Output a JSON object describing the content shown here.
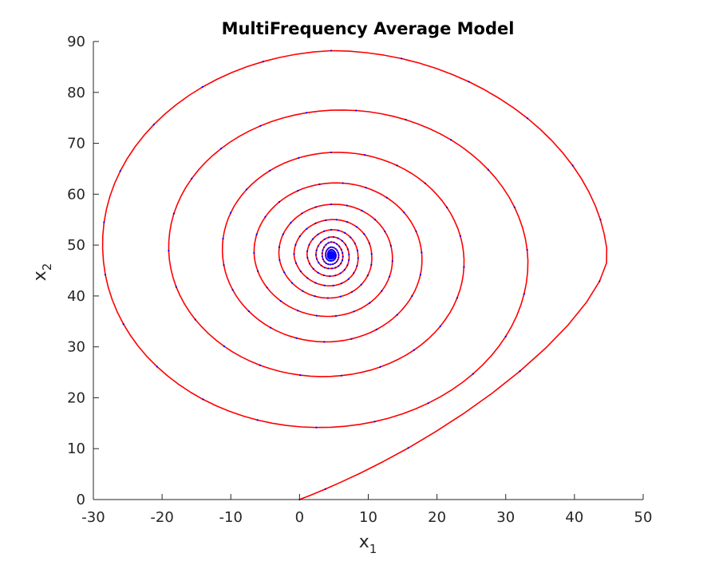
{
  "chart_data": {
    "type": "line",
    "title": "MultiFrequency Average Model",
    "xlabel": "x",
    "xlabel_subscript": "1",
    "ylabel": "x",
    "ylabel_subscript": "2",
    "xlim": [
      -30,
      50
    ],
    "ylim": [
      0,
      90
    ],
    "xticks": [
      -30,
      -20,
      -10,
      0,
      10,
      20,
      30,
      40,
      50
    ],
    "yticks": [
      0,
      10,
      20,
      30,
      40,
      50,
      60,
      70,
      80,
      90
    ],
    "grid": false,
    "legend": "none",
    "series": [
      {
        "style": "red solid line",
        "color": "#ff0000",
        "center": [
          4.6,
          48.0
        ],
        "start": [
          0,
          0
        ],
        "turn_extremes": {
          "x_max": [
            44.8,
            33.2,
            23.9,
            17.8,
            13.5,
            10.5,
            8.5,
            7.2,
            6.3,
            5.7,
            5.3,
            5.1
          ],
          "y_max": [
            88.2,
            76.5,
            68.2,
            62.2,
            58.0,
            55.0,
            53.0,
            51.6,
            50.6,
            49.6,
            49.1,
            48.7
          ],
          "x_min": [
            -28.6,
            -19.0,
            -11.2,
            -6.6,
            -3.0,
            -0.8,
            1.1,
            2.4,
            3.3,
            3.8,
            4.1,
            4.3
          ],
          "y_min": [
            14.2,
            24.2,
            31.0,
            36.0,
            39.6,
            42.0,
            43.9,
            45.4,
            46.2,
            46.9,
            47.3,
            47.6
          ]
        }
      },
      {
        "style": "blue point markers",
        "color": "#0000ff",
        "note": "sampled points overlaid on the red trajectory"
      }
    ]
  }
}
